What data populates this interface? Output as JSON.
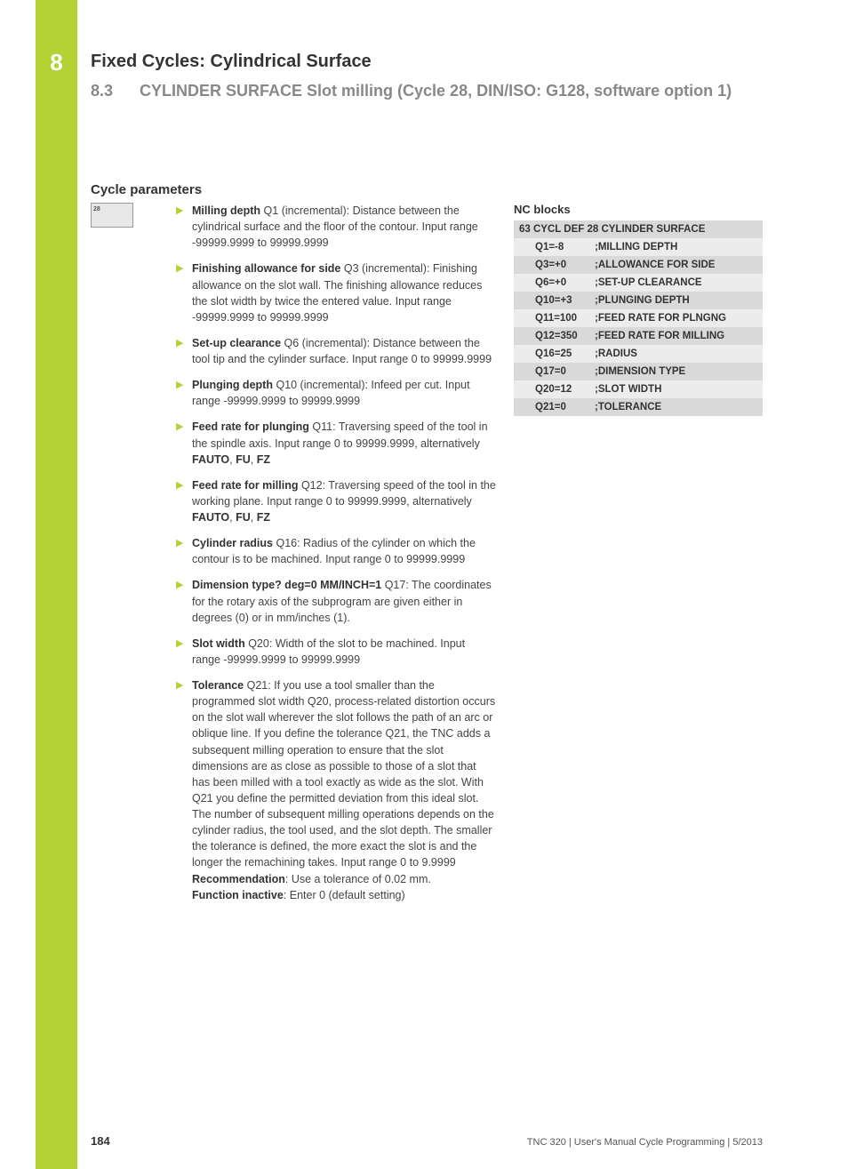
{
  "chapter": {
    "num": "8",
    "title": "Fixed Cycles: Cylindrical Surface"
  },
  "section": {
    "num": "8.3",
    "title": "CYLINDER SURFACE Slot milling (Cycle 28, DIN/ISO: G128, software option 1)"
  },
  "subhead": "Cycle parameters",
  "icon_label": "28",
  "params": [
    {
      "label": "Milling depth",
      "body": " Q1 (incremental): Distance between the cylindrical surface and the floor of the contour. Input range -99999.9999 to 99999.9999"
    },
    {
      "label": "Finishing allowance for side",
      "body": " Q3 (incremental): Finishing allowance on the slot wall. The finishing allowance reduces the slot width by twice the entered value. Input range -99999.9999 to 99999.9999"
    },
    {
      "label": "Set-up clearance",
      "body": " Q6 (incremental): Distance between the tool tip and the cylinder surface. Input range 0 to 99999.9999"
    },
    {
      "label": "Plunging depth",
      "body": " Q10 (incremental): Infeed per cut. Input range -99999.9999 to 99999.9999"
    },
    {
      "label": "Feed rate for plunging",
      "body": " Q11: Traversing speed of the tool in the spindle axis. Input range 0 to 99999.9999, alternatively ",
      "tail": [
        "FAUTO",
        ", ",
        "FU",
        ", ",
        "FZ"
      ]
    },
    {
      "label": "Feed rate for milling",
      "body": " Q12: Traversing speed of the tool in the working plane. Input range 0 to 99999.9999, alternatively ",
      "tail": [
        "FAUTO",
        ", ",
        "FU",
        ", ",
        "FZ"
      ]
    },
    {
      "label": "Cylinder radius",
      "body": " Q16: Radius of the cylinder on which the contour is to be machined. Input range 0 to 99999.9999"
    },
    {
      "label": "Dimension type? deg=0 MM/INCH=1",
      "body": " Q17: The coordinates for the rotary axis of the subprogram are given either in degrees (0) or in mm/inches (1)."
    },
    {
      "label": "Slot width",
      "body": " Q20: Width of the slot to be machined. Input range -99999.9999 to 99999.9999"
    },
    {
      "label": "Tolerance",
      "body": " Q21: If you use a tool smaller than the programmed slot width Q20, process-related distortion occurs on the slot wall wherever the slot follows the path of an arc or oblique line. If you define the tolerance Q21, the TNC adds a subsequent milling operation to ensure that the slot dimensions are as close as possible to those of a slot that has been milled with a tool exactly as wide as the slot. With Q21 you define the permitted deviation from this ideal slot. The number of subsequent milling operations depends on the cylinder radius, the tool used, and the slot depth. The smaller the tolerance is defined, the more exact the slot is and the longer the remachining takes. Input range 0 to 9.9999",
      "extra": [
        {
          "b": "Recommendation",
          "t": ": Use a tolerance of 0.02 mm."
        },
        {
          "b": "Function inactive",
          "t": ": Enter 0 (default setting)"
        }
      ]
    }
  ],
  "nc": {
    "title": "NC blocks",
    "rows": [
      {
        "full": "63 CYCL DEF 28 CYLINDER SURFACE"
      },
      {
        "c1": "Q1=-8",
        "c2": ";MILLING DEPTH"
      },
      {
        "c1": "Q3=+0",
        "c2": ";ALLOWANCE FOR SIDE"
      },
      {
        "c1": "Q6=+0",
        "c2": ";SET-UP CLEARANCE"
      },
      {
        "c1": "Q10=+3",
        "c2": ";PLUNGING DEPTH"
      },
      {
        "c1": "Q11=100",
        "c2": ";FEED RATE FOR PLNGNG"
      },
      {
        "c1": "Q12=350",
        "c2": ";FEED RATE FOR MILLING"
      },
      {
        "c1": "Q16=25",
        "c2": ";RADIUS"
      },
      {
        "c1": "Q17=0",
        "c2": ";DIMENSION TYPE"
      },
      {
        "c1": "Q20=12",
        "c2": ";SLOT WIDTH"
      },
      {
        "c1": "Q21=0",
        "c2": ";TOLERANCE"
      }
    ],
    "row_bg_dark": "#d9d9d9",
    "row_bg_light": "#ececec"
  },
  "footer": {
    "page": "184",
    "text": "TNC 320 | User's Manual Cycle Programming | 5/2013"
  },
  "colors": {
    "accent": "#b4d234",
    "muted": "#888888"
  }
}
